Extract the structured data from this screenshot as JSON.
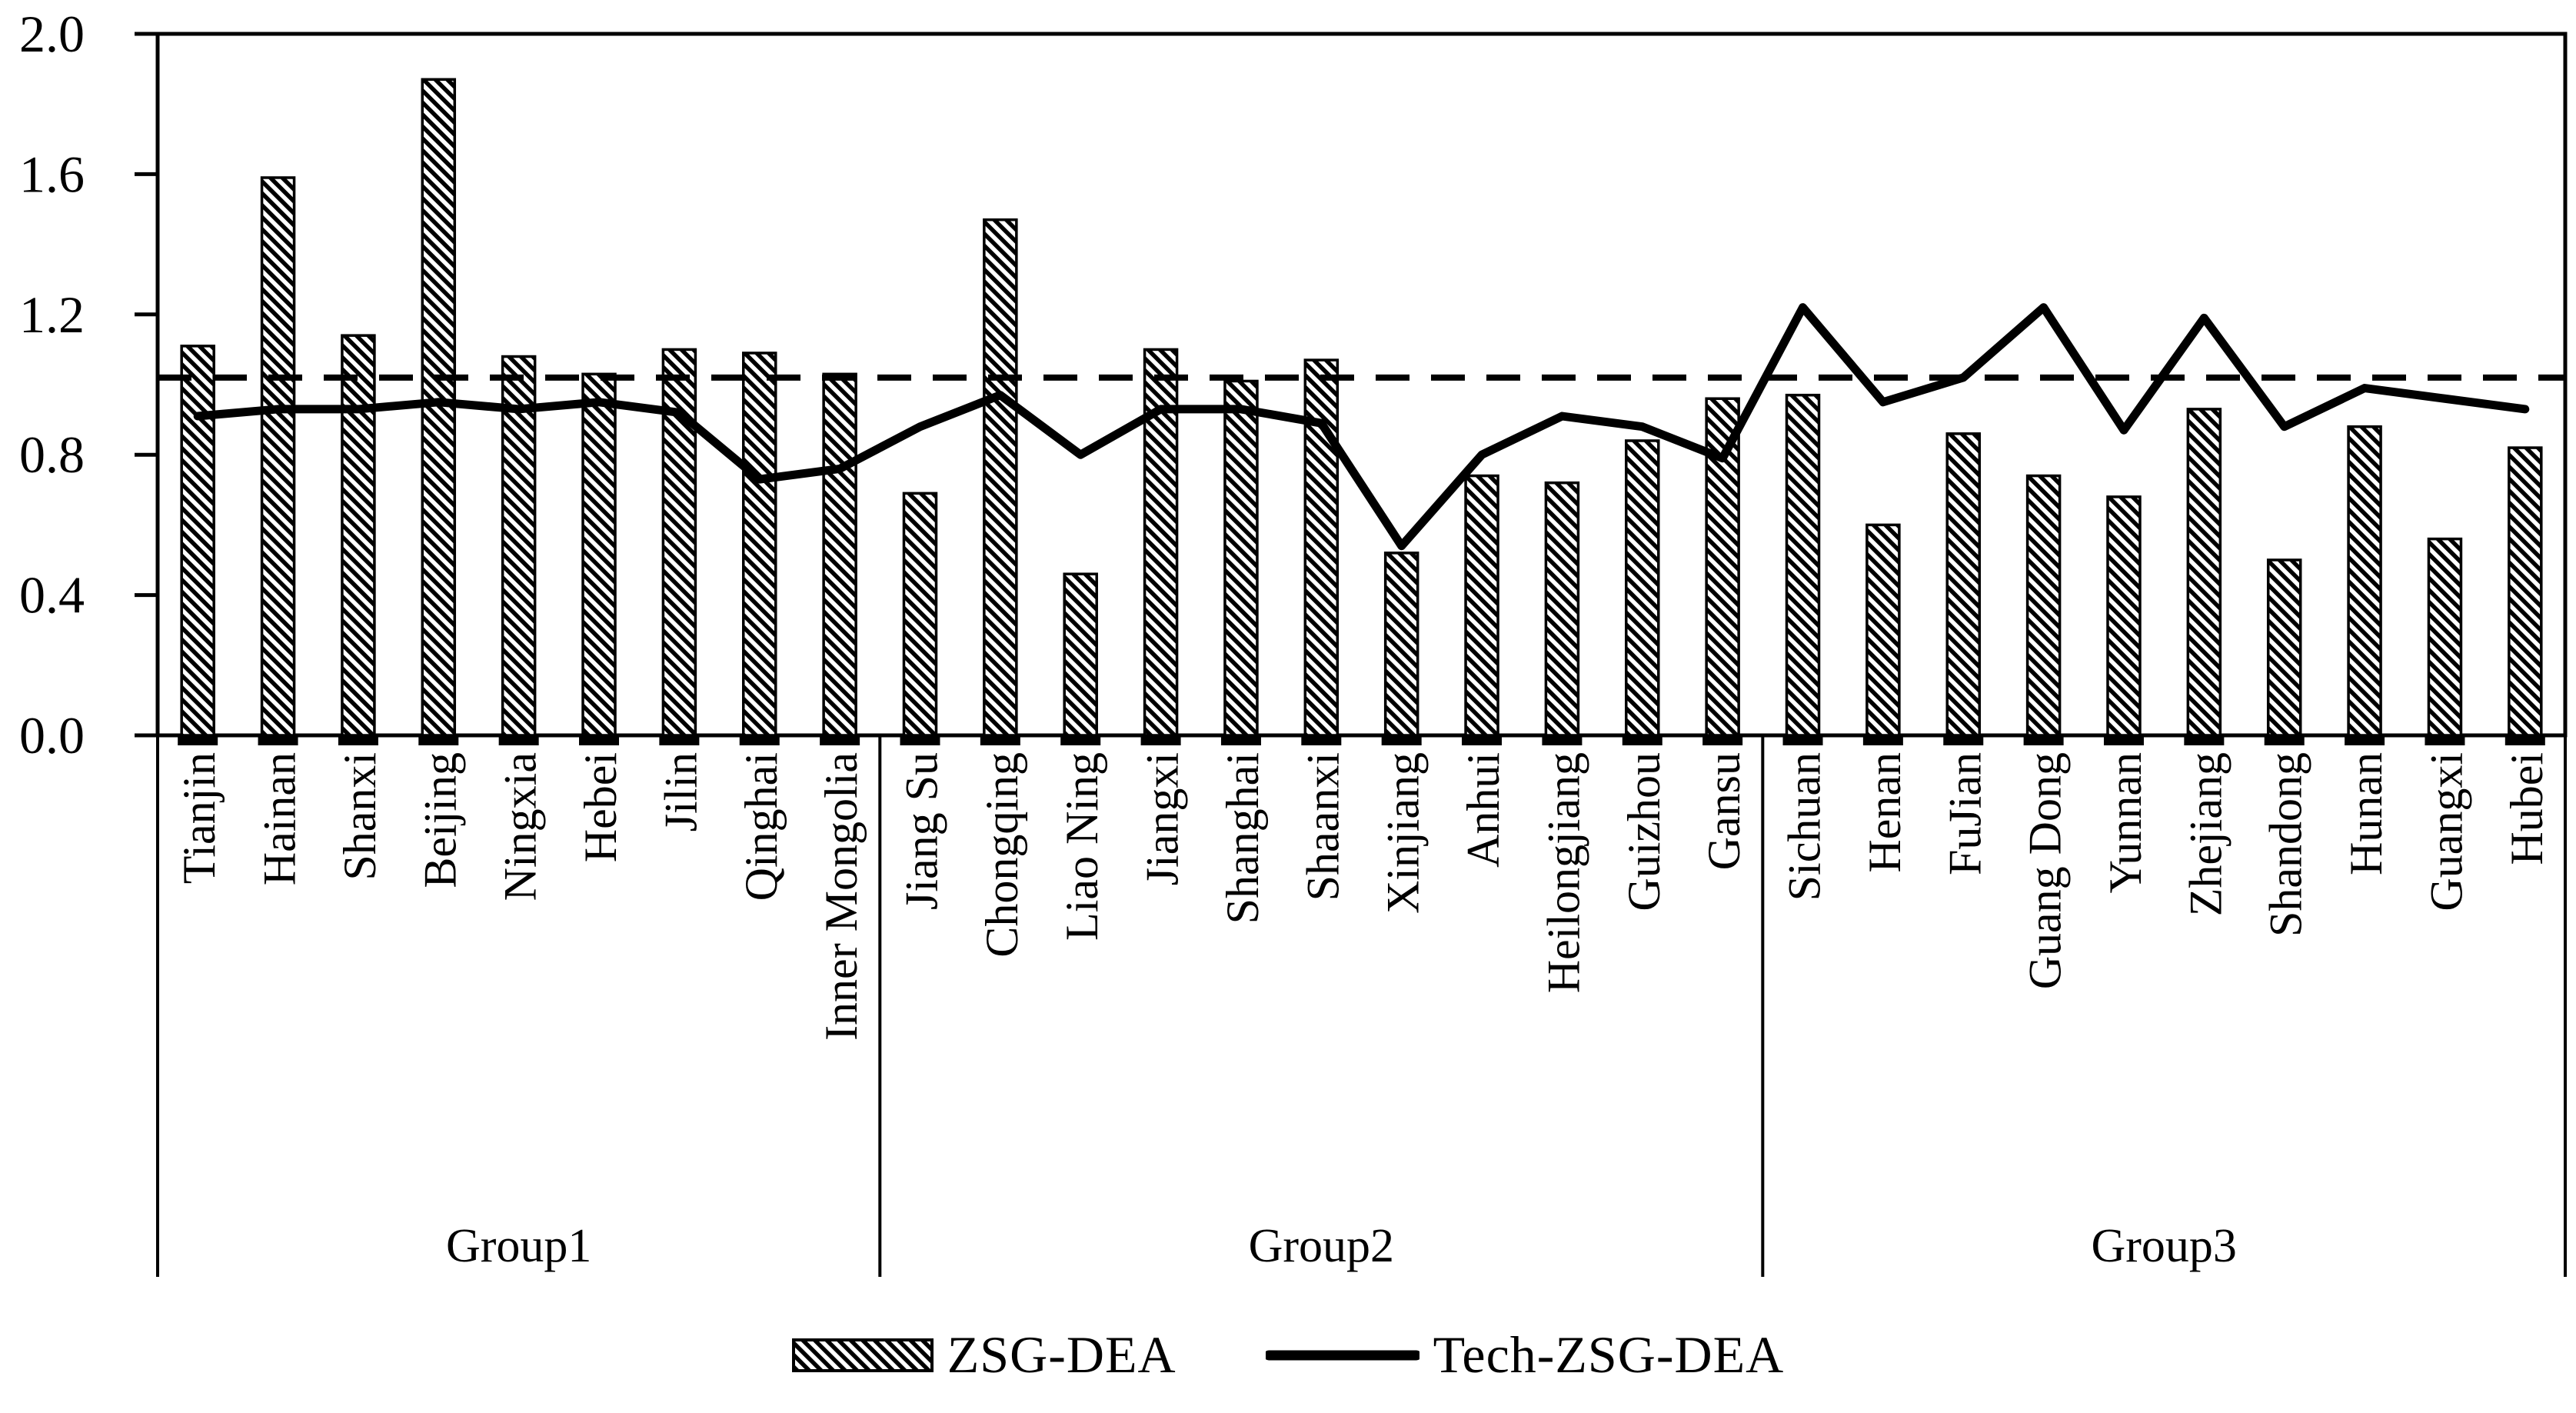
{
  "figure": {
    "background": "#ffffff",
    "ink": "#000000"
  },
  "chart_data": {
    "type": "bar",
    "title": "",
    "xlabel": "",
    "ylabel": "",
    "ylim": [
      0,
      2.0
    ],
    "ytick_labels": [
      "0.0",
      "0.4",
      "0.8",
      "1.2",
      "1.6",
      "2.0"
    ],
    "grid": false,
    "legend_position": "bottom",
    "categories": [
      "Tianjin",
      "Hainan",
      "Shanxi",
      "Beijing",
      "Ningxia",
      "Hebei",
      "Jilin",
      "Qinghai",
      "Inner Mongolia",
      "Jiang Su",
      "Chongqing",
      "Liao Ning",
      "Jiangxi",
      "Shanghai",
      "Shaanxi",
      "Xinjiang",
      "Anhui",
      "Heilongjiang",
      "Guizhou",
      "Gansu",
      "Sichuan",
      "Henan",
      "FuJian",
      "Guang Dong",
      "Yunnan",
      "Zhejiang",
      "Shandong",
      "Hunan",
      "Guangxi",
      "Hubei"
    ],
    "groups": [
      {
        "label": "Group1",
        "count": 9
      },
      {
        "label": "Group2",
        "count": 11
      },
      {
        "label": "Group3",
        "count": 10
      }
    ],
    "series": [
      {
        "name": "ZSG-DEA",
        "type": "bar",
        "style": "diagonal-hatch",
        "values": [
          1.11,
          1.59,
          1.14,
          1.87,
          1.08,
          1.03,
          1.1,
          1.09,
          1.03,
          0.69,
          1.47,
          0.46,
          1.1,
          1.01,
          1.07,
          0.52,
          0.74,
          0.72,
          0.84,
          0.96,
          0.97,
          0.6,
          0.86,
          0.74,
          0.68,
          0.93,
          0.5,
          0.88,
          0.56,
          0.82
        ]
      },
      {
        "name": "Tech-ZSG-DEA",
        "type": "line",
        "style": "solid-thick",
        "values": [
          0.91,
          0.93,
          0.93,
          0.95,
          0.93,
          0.95,
          0.92,
          0.73,
          0.76,
          0.88,
          0.97,
          0.8,
          0.93,
          0.93,
          0.89,
          0.54,
          0.8,
          0.91,
          0.88,
          0.79,
          1.22,
          0.95,
          1.02,
          1.22,
          0.87,
          1.19,
          0.88,
          0.99,
          0.96,
          0.93
        ]
      }
    ],
    "reference_line": {
      "value": 1.02,
      "style": "dashed"
    }
  },
  "legend": {
    "items": [
      {
        "label": "ZSG-DEA",
        "swatch": "hatched-box"
      },
      {
        "label": "Tech-ZSG-DEA",
        "swatch": "thick-line"
      }
    ]
  }
}
